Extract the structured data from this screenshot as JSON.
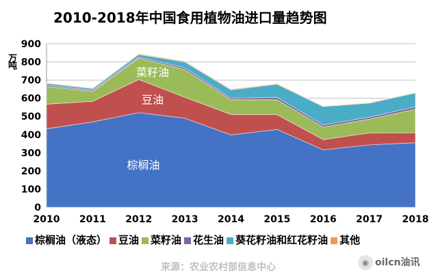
{
  "chart_data": {
    "type": "area",
    "stacked": true,
    "title": "2010-2018年中国食用植物油进口量趋势图",
    "ylabel": "万吨",
    "ylim": [
      0,
      900
    ],
    "yticks": [
      0,
      100,
      200,
      300,
      400,
      500,
      600,
      700,
      800,
      900
    ],
    "x": [
      "2010",
      "2011",
      "2012",
      "2013",
      "2014",
      "2015",
      "2016",
      "2017",
      "2018"
    ],
    "grid": true,
    "legend_position": "bottom",
    "series": [
      {
        "name": "棕榈油（液态）",
        "color": "#4472c4",
        "values": [
          432,
          470,
          521,
          490,
          398,
          428,
          316,
          343,
          355
        ]
      },
      {
        "name": "豆油",
        "color": "#c0504d",
        "values": [
          135,
          113,
          182,
          115,
          113,
          82,
          56,
          66,
          55
        ]
      },
      {
        "name": "菜籽油",
        "color": "#9bbb59",
        "values": [
          98,
          55,
          118,
          153,
          81,
          82,
          70,
          76,
          130
        ]
      },
      {
        "name": "花生油",
        "color": "#8064a2",
        "values": [
          7,
          6,
          6,
          10,
          9,
          13,
          11,
          11,
          13
        ]
      },
      {
        "name": "葵花籽油和红花籽油",
        "color": "#4bacc6",
        "values": [
          10,
          9,
          14,
          32,
          45,
          72,
          101,
          77,
          76
        ]
      },
      {
        "name": "其他",
        "color": "#f79646",
        "values": [
          3,
          3,
          4,
          4,
          4,
          4,
          3,
          3,
          3
        ]
      }
    ],
    "annotations": [
      {
        "text": "菜籽油",
        "series": "菜籽油"
      },
      {
        "text": "豆油",
        "series": "豆油"
      },
      {
        "text": "棕榈油",
        "series": "棕榈油（液态）"
      }
    ]
  },
  "footer": {
    "source": "来源：农业农村部信息中心",
    "brand": "oilcn油讯",
    "brand_icon": "wechat-icon"
  }
}
